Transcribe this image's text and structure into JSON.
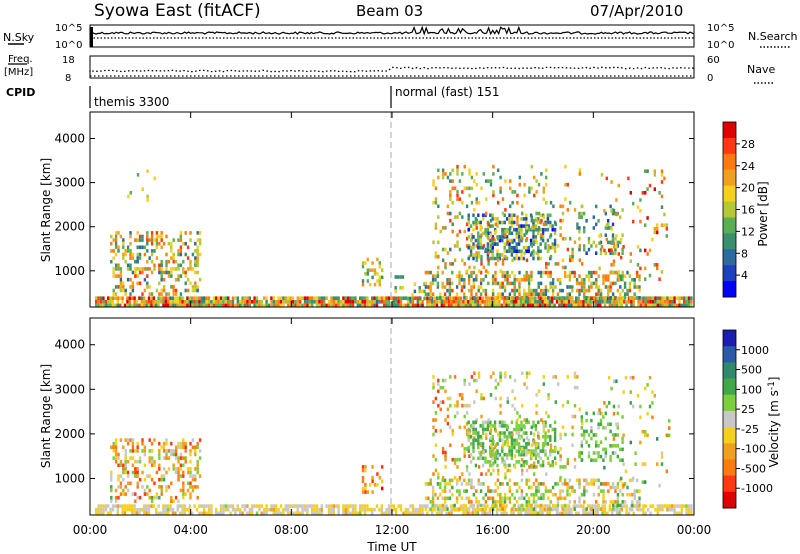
{
  "header": {
    "station": "Syowa East (fitACF)",
    "beam": "Beam 03",
    "date": "07/Apr/2010"
  },
  "status_panels": {
    "nsky": {
      "label": "N.Sky",
      "left_ticks": [
        "10^5",
        "10^0"
      ],
      "right_ticks": [
        "10^5",
        "10^0"
      ],
      "right_label": "N.Search"
    },
    "freq": {
      "label_line1": "Freq.",
      "label_line2": "[MHz]",
      "left_ticks": [
        "18",
        "8"
      ],
      "right_ticks": [
        "60",
        "0"
      ],
      "right_label": "Nave"
    },
    "cpid": {
      "label": "CPID",
      "segments": [
        {
          "name": "themis 3300",
          "start_hour": 0
        },
        {
          "name": "normal (fast) 151",
          "start_hour": 12
        }
      ]
    }
  },
  "x_axis": {
    "title": "Time UT",
    "tick_labels": [
      "00:00",
      "04:00",
      "08:00",
      "12:00",
      "16:00",
      "20:00",
      "00:00"
    ]
  },
  "chart_data": [
    {
      "type": "heatmap",
      "name": "power",
      "ylabel": "Slant Range [km]",
      "x_range_hours": [
        0,
        24
      ],
      "ylim": [
        180,
        4600
      ],
      "y_ticks": [
        "1000",
        "2000",
        "3000",
        "4000"
      ],
      "colorbar": {
        "title": "Power [dB]",
        "tick_labels": [
          "28",
          "24",
          "20",
          "16",
          "12",
          "8",
          "4"
        ],
        "range": [
          0,
          30
        ],
        "colors": [
          "#0000ff",
          "#1d3fbf",
          "#2c6aa0",
          "#3a8f6c",
          "#5bae55",
          "#b5c934",
          "#f5d020",
          "#f0a020",
          "#ff7a10",
          "#ff3a10",
          "#e00000"
        ]
      },
      "echo_regions": [
        {
          "t0": 0.2,
          "t1": 23.9,
          "r0": 200,
          "r1": 420,
          "density": 0.9,
          "vmin": 8,
          "vmax": 30
        },
        {
          "t0": 0.8,
          "t1": 4.4,
          "r0": 500,
          "r1": 1900,
          "density": 0.4,
          "vmin": 6,
          "vmax": 26
        },
        {
          "t0": 1.0,
          "t1": 2.6,
          "r0": 2500,
          "r1": 3300,
          "density": 0.04,
          "vmin": 6,
          "vmax": 20
        },
        {
          "t0": 10.8,
          "t1": 11.6,
          "r0": 700,
          "r1": 1300,
          "density": 0.3,
          "vmin": 8,
          "vmax": 22
        },
        {
          "t0": 12.1,
          "t1": 13.6,
          "r0": 400,
          "r1": 900,
          "density": 0.2,
          "vmin": 6,
          "vmax": 18
        },
        {
          "t0": 13.3,
          "t1": 21.8,
          "r0": 350,
          "r1": 1000,
          "density": 0.45,
          "vmin": 6,
          "vmax": 26
        },
        {
          "t0": 13.6,
          "t1": 15.6,
          "r0": 1000,
          "r1": 3400,
          "density": 0.18,
          "vmin": 8,
          "vmax": 26
        },
        {
          "t0": 15.0,
          "t1": 18.5,
          "r0": 1300,
          "r1": 2300,
          "density": 0.5,
          "vmin": 2,
          "vmax": 18
        },
        {
          "t0": 15.6,
          "t1": 19.6,
          "r0": 1000,
          "r1": 3400,
          "density": 0.12,
          "vmin": 8,
          "vmax": 26
        },
        {
          "t0": 19.4,
          "t1": 21.2,
          "r0": 1400,
          "r1": 2500,
          "density": 0.3,
          "vmin": 4,
          "vmax": 16
        },
        {
          "t0": 20.2,
          "t1": 23.0,
          "r0": 800,
          "r1": 3300,
          "density": 0.08,
          "vmin": 10,
          "vmax": 28
        }
      ]
    },
    {
      "type": "heatmap",
      "name": "velocity",
      "ylabel": "Slant Range [km]",
      "x_range_hours": [
        0,
        24
      ],
      "ylim": [
        180,
        4600
      ],
      "y_ticks": [
        "1000",
        "2000",
        "3000",
        "4000"
      ],
      "colorbar": {
        "title": "Velocity [m s^-1]",
        "tick_labels": [
          "1000",
          "500",
          "100",
          "25",
          "-25",
          "-100",
          "-500",
          "-1000"
        ],
        "range": [
          -1000,
          1000
        ],
        "colors": [
          "#e00000",
          "#ff3a10",
          "#ff7a10",
          "#f0a020",
          "#f5d020",
          "#c8c8c8",
          "#7ccf3c",
          "#3fa84a",
          "#2f8a6c",
          "#2a5aa8",
          "#1c1cb0"
        ]
      },
      "echo_regions": [
        {
          "t0": 0.2,
          "t1": 23.9,
          "r0": 200,
          "r1": 420,
          "density": 0.7,
          "vmin": -300,
          "vmax": 100
        },
        {
          "t0": 0.8,
          "t1": 4.4,
          "r0": 500,
          "r1": 1900,
          "density": 0.35,
          "vmin": -800,
          "vmax": 300
        },
        {
          "t0": 10.8,
          "t1": 11.6,
          "r0": 700,
          "r1": 1300,
          "density": 0.25,
          "vmin": -900,
          "vmax": -100
        },
        {
          "t0": 13.3,
          "t1": 21.8,
          "r0": 350,
          "r1": 1000,
          "density": 0.4,
          "vmin": -500,
          "vmax": 400
        },
        {
          "t0": 13.6,
          "t1": 15.6,
          "r0": 1000,
          "r1": 3400,
          "density": 0.18,
          "vmin": -700,
          "vmax": 200
        },
        {
          "t0": 15.0,
          "t1": 18.5,
          "r0": 1300,
          "r1": 2300,
          "density": 0.5,
          "vmin": 50,
          "vmax": 400
        },
        {
          "t0": 15.6,
          "t1": 19.6,
          "r0": 1000,
          "r1": 3400,
          "density": 0.12,
          "vmin": -500,
          "vmax": 300
        },
        {
          "t0": 19.4,
          "t1": 21.2,
          "r0": 1400,
          "r1": 2500,
          "density": 0.3,
          "vmin": 50,
          "vmax": 400
        },
        {
          "t0": 20.2,
          "t1": 23.0,
          "r0": 800,
          "r1": 3300,
          "density": 0.08,
          "vmin": -600,
          "vmax": 600
        }
      ]
    }
  ]
}
